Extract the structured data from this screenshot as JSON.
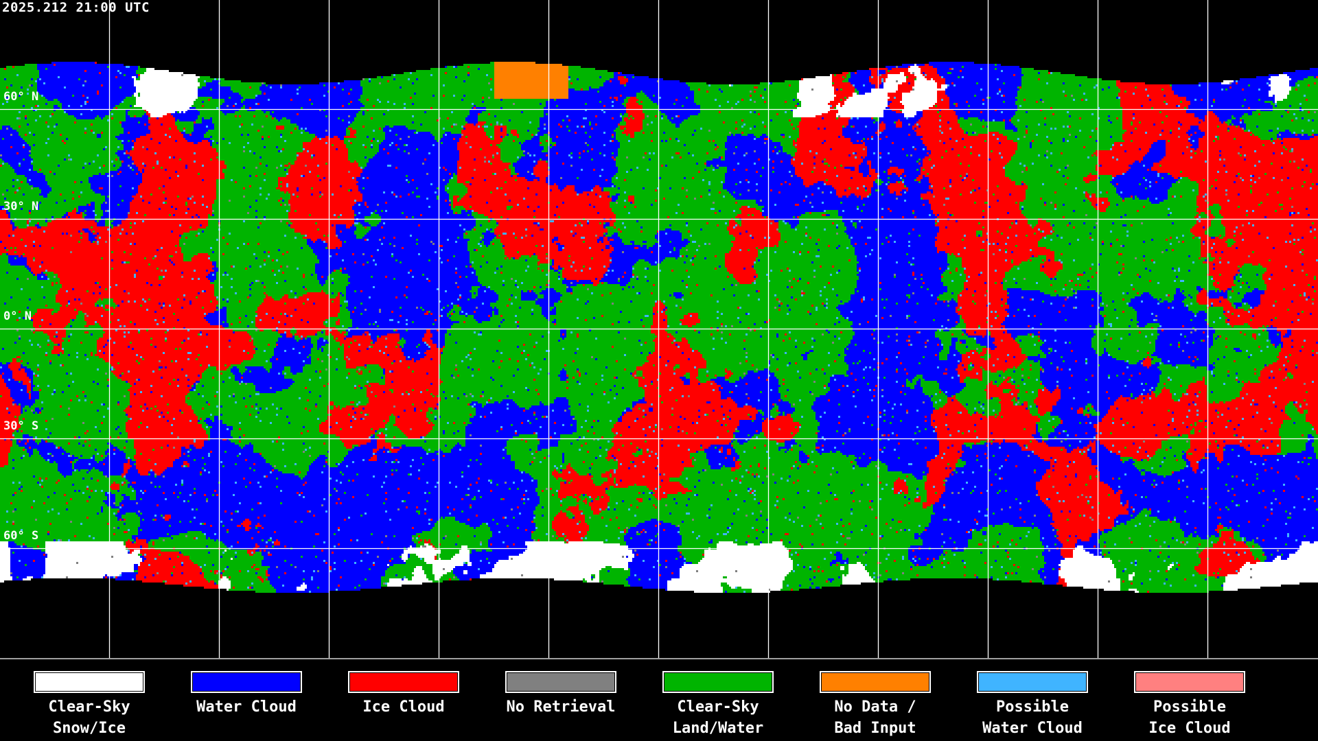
{
  "header": {
    "timestamp": "2025.212 21:00 UTC"
  },
  "map": {
    "projection": "equirectangular",
    "latitude_labels": [
      "60° N",
      "30° N",
      "0° N",
      "30° S",
      "60° S"
    ],
    "grid_spacing_degrees": 30,
    "coastline_color": "#ffffff",
    "grid_color": "#ffffff"
  },
  "legend": [
    {
      "line1": "Clear-Sky",
      "line2": "Snow/Ice",
      "color": "#ffffff"
    },
    {
      "line1": "Water Cloud",
      "line2": "",
      "color": "#0000ff"
    },
    {
      "line1": "Ice Cloud",
      "line2": "",
      "color": "#ff0000"
    },
    {
      "line1": "No Retrieval",
      "line2": "",
      "color": "#808080"
    },
    {
      "line1": "Clear-Sky",
      "line2": "Land/Water",
      "color": "#00b400"
    },
    {
      "line1": "No Data /",
      "line2": "Bad Input",
      "color": "#ff8000"
    },
    {
      "line1": "Possible",
      "line2": "Water Cloud",
      "color": "#40b4ff"
    },
    {
      "line1": "Possible",
      "line2": "Ice Cloud",
      "color": "#ff8080"
    }
  ]
}
